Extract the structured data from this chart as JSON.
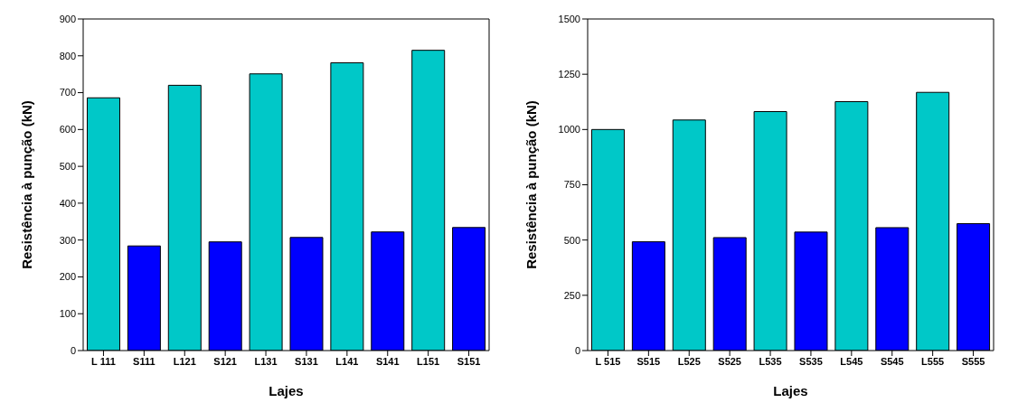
{
  "chart_data": [
    {
      "type": "bar",
      "xlabel": "Lajes",
      "ylabel": "Resistência à punção (kN)",
      "categories": [
        "L 111",
        "S111",
        "L121",
        "S121",
        "L131",
        "S131",
        "L141",
        "S141",
        "L151",
        "S151"
      ],
      "values": [
        686,
        284,
        720,
        295,
        751,
        307,
        781,
        322,
        815,
        334
      ],
      "colors": [
        "#00c8c8",
        "#0000ff",
        "#00c8c8",
        "#0000ff",
        "#00c8c8",
        "#0000ff",
        "#00c8c8",
        "#0000ff",
        "#00c8c8",
        "#0000ff"
      ],
      "ylim": [
        0,
        900
      ],
      "yticks": [
        0,
        100,
        200,
        300,
        400,
        500,
        600,
        700,
        800,
        900
      ],
      "grid": false,
      "legend": false
    },
    {
      "type": "bar",
      "xlabel": "Lajes",
      "ylabel": "Resistência à punção (kN)",
      "categories": [
        "L 515",
        "S515",
        "L525",
        "S525",
        "L535",
        "S535",
        "L545",
        "S545",
        "L555",
        "S555"
      ],
      "values": [
        1000,
        492,
        1043,
        511,
        1081,
        536,
        1126,
        556,
        1168,
        574
      ],
      "colors": [
        "#00c8c8",
        "#0000ff",
        "#00c8c8",
        "#0000ff",
        "#00c8c8",
        "#0000ff",
        "#00c8c8",
        "#0000ff",
        "#00c8c8",
        "#0000ff"
      ],
      "ylim": [
        0,
        1500
      ],
      "yticks": [
        0,
        250,
        500,
        750,
        1000,
        1250,
        1500
      ],
      "grid": false,
      "legend": false
    }
  ]
}
